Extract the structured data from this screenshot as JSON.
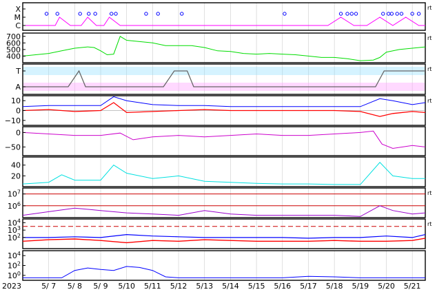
{
  "chart_data": {
    "type": "line",
    "x_range": [
      "2023-05-06T00:00",
      "2023-05-21T12:00"
    ],
    "year_label": "2023",
    "date_ticks": [
      "5/ 7",
      "5/ 8",
      "5/ 9",
      "5/10",
      "5/11",
      "5/12",
      "5/13",
      "5/14",
      "5/15",
      "5/16",
      "5/17",
      "5/18",
      "5/19",
      "5/20",
      "5/21"
    ],
    "grid": true,
    "panels": [
      {
        "id": "xray-flares",
        "y_tick_labels": [
          "X",
          "M",
          "C"
        ],
        "right_tag": "rt",
        "colors": {
          "line": "#ff00ff",
          "marker": "#0000ff"
        },
        "series": [
          {
            "x": [
              "5/6 00:00",
              "5/6 18:00",
              "5/7 06:00",
              "5/7 10:00",
              "5/7 20:00",
              "5/8 06:00",
              "5/8 12:00",
              "5/8 20:00",
              "5/9 03:00",
              "5/9 08:00",
              "5/9 18:00",
              "5/10 06:00",
              "5/10 18:00",
              "5/11 06:00",
              "5/11 18:00",
              "5/12 06:00",
              "5/12 18:00",
              "5/13 06:00",
              "5/13 18:00",
              "5/14 06:00",
              "5/14 18:00",
              "5/15 06:00",
              "5/15 18:00",
              "5/16 06:00",
              "5/16 18:00",
              "5/17 06:00",
              "5/17 18:00",
              "5/18 06:00",
              "5/18 18:00",
              "5/19 06:00",
              "5/19 18:00",
              "5/20 06:00",
              "5/20 18:00",
              "5/21 06:00",
              "5/21 12:00"
            ],
            "values": [
              "C",
              "C",
              "C",
              "M",
              "C",
              "C",
              "M",
              "C",
              "C",
              "M",
              "C",
              "C",
              "C",
              "C",
              "C",
              "C",
              "C",
              "C",
              "C",
              "C",
              "C",
              "C",
              "C",
              "C",
              "C",
              "C",
              "C",
              "M",
              "C",
              "C",
              "M",
              "C",
              "M",
              "C",
              "C"
            ]
          }
        ],
        "markers": [
          "5/6 22:00",
          "5/7 08:00",
          "5/8 05:00",
          "5/8 13:00",
          "5/8 19:00",
          "5/9 10:00",
          "5/9 14:00",
          "5/10 18:00",
          "5/11 05:00",
          "5/12 03:00",
          "5/16 02:00",
          "5/18 06:00",
          "5/18 12:00",
          "5/18 16:00",
          "5/18 20:00",
          "5/19 21:00",
          "5/20 02:00",
          "5/20 05:00",
          "5/20 10:00",
          "5/20 14:00",
          "5/21 00:00",
          "5/21 06:00"
        ]
      },
      {
        "id": "solar-wind-speed",
        "y_tick_labels": [
          "700",
          "600",
          "500",
          "400"
        ],
        "ylim": [
          300,
          750
        ],
        "right_tag": "rt",
        "colors": {
          "line": "#00dd00"
        },
        "series": [
          {
            "x": [
              "5/6 00:00",
              "5/6 12:00",
              "5/7 00:00",
              "5/7 12:00",
              "5/8 00:00",
              "5/8 12:00",
              "5/8 18:00",
              "5/9 00:00",
              "5/9 06:00",
              "5/9 12:00",
              "5/9 18:00",
              "5/10 00:00",
              "5/10 12:00",
              "5/11 00:00",
              "5/11 12:00",
              "5/12 00:00",
              "5/12 12:00",
              "5/13 00:00",
              "5/13 12:00",
              "5/14 00:00",
              "5/14 12:00",
              "5/15 00:00",
              "5/15 12:00",
              "5/16 00:00",
              "5/16 12:00",
              "5/17 00:00",
              "5/17 12:00",
              "5/18 00:00",
              "5/18 12:00",
              "5/19 00:00",
              "5/19 12:00",
              "5/19 18:00",
              "5/20 00:00",
              "5/20 12:00",
              "5/21 00:00",
              "5/21 12:00"
            ],
            "values": [
              400,
              420,
              440,
              480,
              520,
              540,
              530,
              480,
              420,
              430,
              700,
              640,
              620,
              600,
              560,
              560,
              560,
              530,
              480,
              470,
              440,
              430,
              440,
              430,
              420,
              400,
              380,
              380,
              360,
              330,
              340,
              380,
              460,
              500,
              520,
              540
            ]
          }
        ]
      },
      {
        "id": "magnetic-sector",
        "y_tick_labels": [
          "T",
          "A"
        ],
        "right_tag": "rt",
        "colors": {
          "toward": "#88ddff",
          "away": "#ffa0ff",
          "sector": "#666666"
        },
        "series": [
          {
            "name": "",
            "x": [
              "5/6 00:00",
              "5/7 18:00",
              "5/8 04:00",
              "5/8 10:00",
              "5/11 10:00",
              "5/11 20:00",
              "5/12 08:00",
              "5/12 14:00",
              "5/19 14:00",
              "5/19 22:00",
              "5/21 12:00"
            ],
            "values": [
              0,
              0,
              1,
              0,
              0,
              1,
              1,
              0,
              0,
              1,
              1
            ]
          }
        ]
      },
      {
        "id": "imf",
        "y_tick_labels": [
          "10",
          "0",
          "−10"
        ],
        "ylim": [
          -15,
          15
        ],
        "right_tag": "rt",
        "colors": {
          "bt": "#0000ff",
          "bz": "#ff0000"
        },
        "series": [
          {
            "name": "",
            "x": [
              "5/6 00:00",
              "5/7 00:00",
              "5/8 00:00",
              "5/9 00:00",
              "5/9 12:00",
              "5/10 00:00",
              "5/11 00:00",
              "5/12 00:00",
              "5/13 00:00",
              "5/14 00:00",
              "5/15 00:00",
              "5/16 00:00",
              "5/17 00:00",
              "5/18 00:00",
              "5/19 00:00",
              "5/19 18:00",
              "5/20 06:00",
              "5/21 00:00",
              "5/21 12:00"
            ],
            "values": [
              4,
              5,
              5,
              5,
              14,
              10,
              6,
              5,
              5,
              4,
              4,
              4,
              4,
              4,
              4,
              12,
              10,
              6,
              8
            ]
          },
          {
            "name": "",
            "x": [
              "5/6 00:00",
              "5/7 00:00",
              "5/8 00:00",
              "5/9 00:00",
              "5/9 12:00",
              "5/10 00:00",
              "5/11 00:00",
              "5/12 00:00",
              "5/13 00:00",
              "5/14 00:00",
              "5/15 00:00",
              "5/16 00:00",
              "5/17 00:00",
              "5/18 00:00",
              "5/19 00:00",
              "5/19 18:00",
              "5/20 06:00",
              "5/21 00:00",
              "5/21 12:00"
            ],
            "values": [
              0,
              1,
              -1,
              0,
              8,
              -2,
              -1,
              0,
              1,
              0,
              0,
              0,
              0,
              0,
              -1,
              -6,
              -3,
              -1,
              -2
            ]
          }
        ]
      },
      {
        "id": "dst",
        "y_tick_labels": [
          "0",
          "−50"
        ],
        "ylim": [
          -80,
          20
        ],
        "colors": {
          "line": "#cc00cc"
        },
        "series": [
          {
            "x": [
              "5/6 00:00",
              "5/7 00:00",
              "5/8 00:00",
              "5/9 00:00",
              "5/9 18:00",
              "5/10 06:00",
              "5/11 00:00",
              "5/12 00:00",
              "5/13 00:00",
              "5/14 00:00",
              "5/15 00:00",
              "5/16 00:00",
              "5/17 00:00",
              "5/18 00:00",
              "5/19 00:00",
              "5/19 12:00",
              "5/19 20:00",
              "5/20 06:00",
              "5/21 00:00",
              "5/21 12:00"
            ],
            "values": [
              0,
              -5,
              -10,
              -10,
              -2,
              -25,
              -15,
              -10,
              -15,
              -10,
              -5,
              -10,
              -10,
              -5,
              0,
              5,
              -40,
              -55,
              -45,
              -50
            ]
          }
        ]
      },
      {
        "id": "ae-index",
        "y_tick_labels": [
          "40",
          "20"
        ],
        "ylim": [
          0,
          55
        ],
        "colors": {
          "line": "#00e0e0"
        },
        "series": [
          {
            "x": [
              "5/6 00:00",
              "5/7 00:00",
              "5/7 12:00",
              "5/8 00:00",
              "5/9 00:00",
              "5/9 12:00",
              "5/10 00:00",
              "5/11 00:00",
              "5/12 00:00",
              "5/13 00:00",
              "5/14 00:00",
              "5/15 00:00",
              "5/16 00:00",
              "5/17 00:00",
              "5/18 00:00",
              "5/19 00:00",
              "5/19 18:00",
              "5/20 06:00",
              "5/21 00:00",
              "5/21 12:00"
            ],
            "values": [
              5,
              8,
              22,
              12,
              12,
              40,
              25,
              15,
              20,
              10,
              8,
              6,
              5,
              5,
              4,
              4,
              45,
              20,
              15,
              15
            ]
          }
        ]
      },
      {
        "id": "electron-flux",
        "y_tick_labels": [
          "10^7",
          "10^6"
        ],
        "ylim_log": [
          5,
          7.5
        ],
        "right_tag": "rt",
        "colors": {
          "line": "#9900cc",
          "threshold": "#cc0000"
        },
        "thresholds": [
          7,
          6
        ],
        "series": [
          {
            "x": [
              "5/6 00:00",
              "5/7 00:00",
              "5/8 00:00",
              "5/9 00:00",
              "5/10 00:00",
              "5/11 00:00",
              "5/12 00:00",
              "5/13 00:00",
              "5/14 00:00",
              "5/15 00:00",
              "5/16 00:00",
              "5/17 00:00",
              "5/18 00:00",
              "5/19 00:00",
              "5/19 18:00",
              "5/20 06:00",
              "5/21 00:00",
              "5/21 12:00"
            ],
            "values": [
              5.2,
              5.5,
              5.8,
              5.6,
              5.4,
              5.3,
              5.2,
              5.6,
              5.3,
              5.2,
              5.2,
              5.2,
              5.2,
              5.1,
              6.0,
              5.6,
              5.3,
              5.4
            ]
          }
        ]
      },
      {
        "id": "proton-flux",
        "y_tick_labels": [
          "10^4",
          "10^3",
          "10^2"
        ],
        "ylim_log": [
          0.5,
          4.5
        ],
        "right_tag": "rt",
        "colors": {
          "high": "#0000ff",
          "low": "#ff0000",
          "threshold": "#cc0000"
        },
        "thresholds": [
          3.5
        ],
        "series": [
          {
            "name": "",
            "x": [
              "5/6 00:00",
              "5/7 00:00",
              "5/8 00:00",
              "5/9 00:00",
              "5/10 00:00",
              "5/11 00:00",
              "5/12 00:00",
              "5/13 00:00",
              "5/14 00:00",
              "5/15 00:00",
              "5/16 00:00",
              "5/17 00:00",
              "5/18 00:00",
              "5/19 00:00",
              "5/20 00:00",
              "5/21 00:00",
              "5/21 12:00"
            ],
            "values": [
              2.0,
              2.0,
              2.1,
              2.0,
              2.4,
              2.2,
              2.1,
              2.0,
              2.0,
              2.0,
              2.0,
              1.9,
              2.0,
              2.0,
              2.2,
              2.0,
              2.4
            ]
          },
          {
            "name": "",
            "x": [
              "5/6 00:00",
              "5/7 00:00",
              "5/8 00:00",
              "5/9 00:00",
              "5/10 00:00",
              "5/11 00:00",
              "5/12 00:00",
              "5/13 00:00",
              "5/14 00:00",
              "5/15 00:00",
              "5/16 00:00",
              "5/17 00:00",
              "5/18 00:00",
              "5/19 00:00",
              "5/20 00:00",
              "5/21 00:00",
              "5/21 12:00"
            ],
            "values": [
              1.5,
              1.7,
              1.8,
              1.6,
              1.3,
              1.6,
              1.5,
              1.7,
              1.6,
              1.5,
              1.5,
              1.5,
              1.6,
              1.5,
              1.5,
              1.6,
              1.9
            ]
          }
        ]
      },
      {
        "id": "high-energy-protons",
        "y_tick_labels": [
          "10^4",
          "10^2",
          "10^0"
        ],
        "ylim_log": [
          -1,
          5
        ],
        "colors": {
          "line": "#0000ff"
        },
        "series": [
          {
            "x": [
              "5/6 00:00",
              "5/7 12:00",
              "5/8 00:00",
              "5/8 12:00",
              "5/9 00:00",
              "5/9 12:00",
              "5/10 00:00",
              "5/10 12:00",
              "5/11 00:00",
              "5/11 12:00",
              "5/12 00:00",
              "5/14 00:00",
              "5/16 00:00",
              "5/17 00:00",
              "5/18 00:00",
              "5/19 00:00",
              "5/20 00:00",
              "5/21 12:00"
            ],
            "values": [
              -0.5,
              -0.5,
              1.0,
              1.5,
              1.2,
              1.0,
              1.8,
              1.6,
              1.0,
              -0.3,
              -0.5,
              -0.5,
              -0.5,
              -0.2,
              -0.3,
              -0.5,
              -0.5,
              -0.5
            ]
          }
        ]
      }
    ]
  }
}
